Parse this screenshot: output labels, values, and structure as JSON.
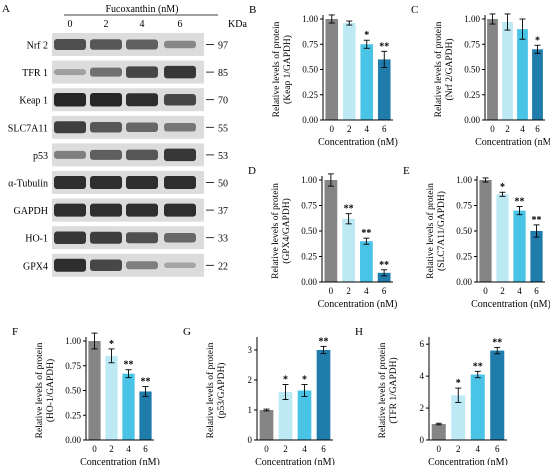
{
  "colors": {
    "c0": "#858585",
    "c2": "#bde9f5",
    "c4": "#4ac4e6",
    "c6": "#1f7cab",
    "blot_bg": "#dcdcdc",
    "band": "#1e1e1e"
  },
  "western_blot": {
    "panel_letter": "A",
    "treatment_label": "Fucoxanthin (nM)",
    "lanes": [
      "0",
      "2",
      "4",
      "6"
    ],
    "kda_header": "KDa",
    "rows": [
      {
        "name": "Nrf 2",
        "kda": "97",
        "intensity": [
          0.7,
          0.65,
          0.6,
          0.35
        ]
      },
      {
        "name": "TFR 1",
        "kda": "85",
        "intensity": [
          0.2,
          0.5,
          0.75,
          0.85
        ]
      },
      {
        "name": "Keap 1",
        "kda": "70",
        "intensity": [
          0.95,
          0.95,
          0.9,
          0.75
        ]
      },
      {
        "name": "SLC7A11",
        "kda": "55",
        "intensity": [
          0.8,
          0.65,
          0.55,
          0.45
        ]
      },
      {
        "name": "p53",
        "kda": "53",
        "intensity": [
          0.4,
          0.6,
          0.65,
          0.85
        ]
      },
      {
        "name": "α-Tubulin",
        "kda": "50",
        "intensity": [
          0.9,
          0.9,
          0.9,
          0.9
        ]
      },
      {
        "name": "GAPDH",
        "kda": "37",
        "intensity": [
          0.9,
          0.9,
          0.9,
          0.9
        ]
      },
      {
        "name": "HO-1",
        "kda": "33",
        "intensity": [
          0.85,
          0.8,
          0.7,
          0.55
        ]
      },
      {
        "name": "GPX4",
        "kda": "22",
        "intensity": [
          0.9,
          0.75,
          0.4,
          0.15
        ]
      }
    ]
  },
  "chart_data": [
    {
      "letter": "B",
      "type": "bar",
      "categories": [
        "0",
        "2",
        "4",
        "6"
      ],
      "values": [
        1.0,
        0.96,
        0.75,
        0.6
      ],
      "errors": [
        0.04,
        0.02,
        0.04,
        0.08
      ],
      "sig": [
        "",
        "",
        "*",
        "**"
      ],
      "ylabel_1": "Relative levels of protein",
      "ylabel_2": "(Keap 1/GAPDH)",
      "xlabel": "Concentration (nM)",
      "ylim": [
        0,
        1.0
      ],
      "ticks": [
        "0.00",
        "0.25",
        "0.50",
        "0.75",
        "1.00"
      ]
    },
    {
      "letter": "C",
      "type": "bar",
      "categories": [
        "0",
        "2",
        "4",
        "6"
      ],
      "values": [
        1.0,
        0.97,
        0.9,
        0.7
      ],
      "errors": [
        0.05,
        0.08,
        0.1,
        0.04
      ],
      "sig": [
        "",
        "",
        "",
        "*"
      ],
      "ylabel_1": "Relative levels of protein",
      "ylabel_2": "(Nrf 2/GAPDH)",
      "xlabel": "Concentration (nM)",
      "ylim": [
        0,
        1.0
      ],
      "ticks": [
        "0.00",
        "0.25",
        "0.50",
        "0.75",
        "1.00"
      ]
    },
    {
      "letter": "D",
      "type": "bar",
      "categories": [
        "0",
        "2",
        "4",
        "6"
      ],
      "values": [
        1.0,
        0.62,
        0.4,
        0.09
      ],
      "errors": [
        0.06,
        0.05,
        0.03,
        0.03
      ],
      "sig": [
        "",
        "**",
        "**",
        "**"
      ],
      "ylabel_1": "Relative levels of protein",
      "ylabel_2": "(GPX4/GAPDH)",
      "xlabel": "Concentration (nM)",
      "ylim": [
        0,
        1.0
      ],
      "ticks": [
        "0.00",
        "0.25",
        "0.50",
        "0.75",
        "1.00"
      ]
    },
    {
      "letter": "E",
      "type": "bar",
      "categories": [
        "0",
        "2",
        "4",
        "6"
      ],
      "values": [
        1.0,
        0.86,
        0.7,
        0.5
      ],
      "errors": [
        0.02,
        0.02,
        0.04,
        0.06
      ],
      "sig": [
        "",
        "*",
        "**",
        "**"
      ],
      "ylabel_1": "Relative levels of protein",
      "ylabel_2": "(SLC7A11/GAPDH)",
      "xlabel": "Concentration (nM)",
      "ylim": [
        0,
        1.0
      ],
      "ticks": [
        "0.00",
        "0.25",
        "0.50",
        "0.75",
        "1.00"
      ]
    },
    {
      "letter": "F",
      "type": "bar",
      "categories": [
        "0",
        "2",
        "4",
        "6"
      ],
      "values": [
        1.0,
        0.85,
        0.67,
        0.49
      ],
      "errors": [
        0.08,
        0.07,
        0.04,
        0.05
      ],
      "sig": [
        "",
        "*",
        "**",
        "**"
      ],
      "ylabel_1": "Relative levels of protein",
      "ylabel_2": "(HO-1/GAPDH)",
      "xlabel": "Concentration (nM)",
      "ylim": [
        0,
        1.0
      ],
      "ticks": [
        "0.00",
        "0.25",
        "0.50",
        "0.75",
        "1.00"
      ]
    },
    {
      "letter": "G",
      "type": "bar",
      "categories": [
        "0",
        "2",
        "4",
        "6"
      ],
      "values": [
        1.0,
        1.6,
        1.65,
        3.0
      ],
      "errors": [
        0.03,
        0.25,
        0.2,
        0.12
      ],
      "sig": [
        "",
        "*",
        "*",
        "**"
      ],
      "ylabel_1": "Relative levels of protein",
      "ylabel_2": "(p53/GAPDH)",
      "xlabel": "Concentration (nM)",
      "ylim": [
        0,
        3.3
      ],
      "ticks": [
        "0",
        "1",
        "2",
        "3"
      ]
    },
    {
      "letter": "H",
      "type": "bar",
      "categories": [
        "0",
        "2",
        "4",
        "6"
      ],
      "values": [
        1.0,
        2.8,
        4.1,
        5.6
      ],
      "errors": [
        0.05,
        0.45,
        0.2,
        0.2
      ],
      "sig": [
        "",
        "*",
        "**",
        "**"
      ],
      "ylabel_1": "Relative levels of protein",
      "ylabel_2": "(TFR 1/GAPDH)",
      "xlabel": "Concentration (nM)",
      "ylim": [
        0,
        6.2
      ],
      "ticks": [
        "0",
        "2",
        "4",
        "6"
      ]
    }
  ]
}
